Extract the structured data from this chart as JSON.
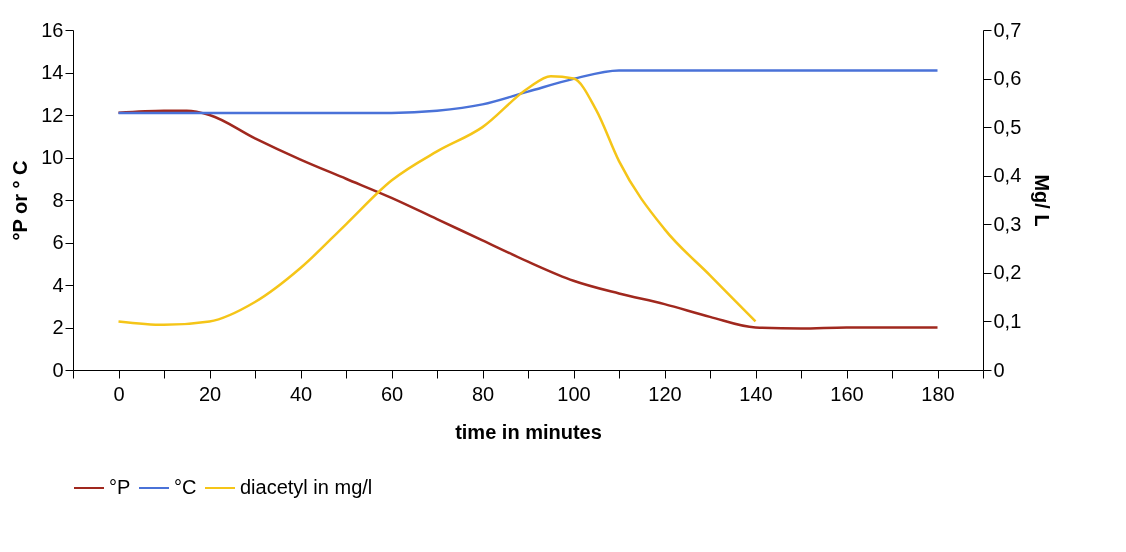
{
  "chart_data": {
    "type": "line",
    "xlabel": "time in minutes",
    "ylabel": "°P or ° C",
    "y2label": "Mg/ L",
    "xlim": [
      -10,
      190
    ],
    "xticks": [
      {
        "value": -10,
        "label": null
      },
      0,
      {
        "value": 10,
        "label": null
      },
      20,
      {
        "value": 30,
        "label": null
      },
      40,
      {
        "value": 50,
        "label": null
      },
      60,
      {
        "value": 70,
        "label": null
      },
      80,
      {
        "value": 90,
        "label": null
      },
      100,
      {
        "value": 110,
        "label": null
      },
      120,
      {
        "value": 130,
        "label": null
      },
      140,
      {
        "value": 150,
        "label": null
      },
      160,
      {
        "value": 170,
        "label": null
      },
      180,
      {
        "value": 190,
        "label": null
      }
    ],
    "ylim": [
      0,
      16
    ],
    "yticks": [
      0,
      2,
      4,
      6,
      8,
      10,
      12,
      14,
      16
    ],
    "y2lim": [
      0,
      0.7
    ],
    "y2ticks": [
      {
        "value": 0,
        "label": "0"
      },
      {
        "value": 0.1,
        "label": "0,1"
      },
      {
        "value": 0.2,
        "label": "0,2"
      },
      {
        "value": 0.3,
        "label": "0,3"
      },
      {
        "value": 0.4,
        "label": "0,4"
      },
      {
        "value": 0.5,
        "label": "0,5"
      },
      {
        "value": 0.6,
        "label": "0,6"
      },
      {
        "value": 0.7,
        "label": "0,7"
      }
    ],
    "grid": false,
    "legend": "bottom",
    "marker": "none",
    "line_style": "solid",
    "series": [
      {
        "name": "°P",
        "color": "#a0281e",
        "x": [
          0,
          10,
          15,
          20,
          30,
          40,
          50,
          60,
          70,
          80,
          90,
          100,
          110,
          120,
          130,
          140,
          150,
          160,
          180
        ],
        "values": [
          12.1,
          12.2,
          12.2,
          12.0,
          10.9,
          9.9,
          9.0,
          8.1,
          7.1,
          6.1,
          5.1,
          4.2,
          3.6,
          3.1,
          2.5,
          2.0,
          1.95,
          2.0,
          2.0
        ]
      },
      {
        "name": "°C",
        "color": "#4a72d8",
        "x": [
          0,
          20,
          40,
          60,
          70,
          80,
          90,
          100,
          110,
          120,
          140,
          160,
          180
        ],
        "values": [
          12.1,
          12.1,
          12.1,
          12.1,
          12.2,
          12.5,
          13.1,
          13.7,
          14.1,
          14.1,
          14.1,
          14.1,
          14.1
        ]
      },
      {
        "name": "diacetyl in mg/l",
        "color": "#f5c518",
        "axis": "y2",
        "x": [
          0,
          10,
          20,
          30,
          40,
          50,
          60,
          70,
          80,
          90,
          95,
          100,
          105,
          110,
          120,
          130,
          140
        ],
        "values": [
          0.1,
          0.093,
          0.1,
          0.14,
          0.21,
          0.3,
          0.39,
          0.45,
          0.5,
          0.58,
          0.605,
          0.6,
          0.535,
          0.43,
          0.29,
          0.195,
          0.1
        ]
      }
    ]
  }
}
